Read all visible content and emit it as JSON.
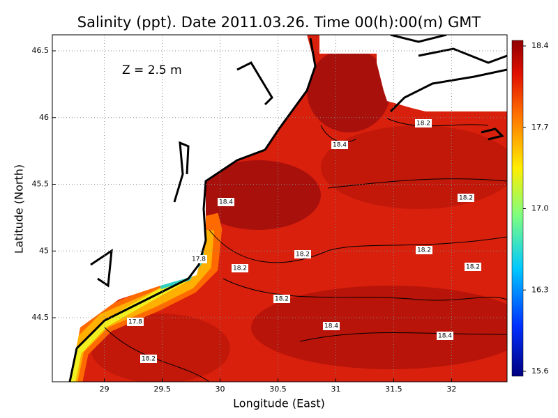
{
  "chart_data": {
    "type": "contour-map",
    "title": "Salinity (ppt). Date 2011.03.26. Time 00(h):00(m) GMT",
    "annotation": "Z = 2.5 m",
    "x_label": "Longitude (East)",
    "y_label": "Latitude (North)",
    "xlim": [
      28.55,
      32.48
    ],
    "ylim": [
      44.02,
      46.62
    ],
    "xticks": [
      29,
      29.5,
      30,
      30.5,
      31,
      31.5,
      32
    ],
    "yticks": [
      44.5,
      45,
      45.5,
      46,
      46.5
    ],
    "grid": true,
    "colorbar": {
      "lim": [
        15.6,
        18.4
      ],
      "ticks": [
        15.6,
        16.3,
        {
          "value": 17,
          "label": "17.0"
        },
        17.7,
        18.4
      ]
    },
    "contour_labels": [
      18.2,
      18.4,
      18.4,
      18.2,
      17.8,
      18.2,
      18.2,
      18.2,
      18.2,
      18.2,
      17.8,
      18.4,
      18.4,
      18.2
    ]
  }
}
